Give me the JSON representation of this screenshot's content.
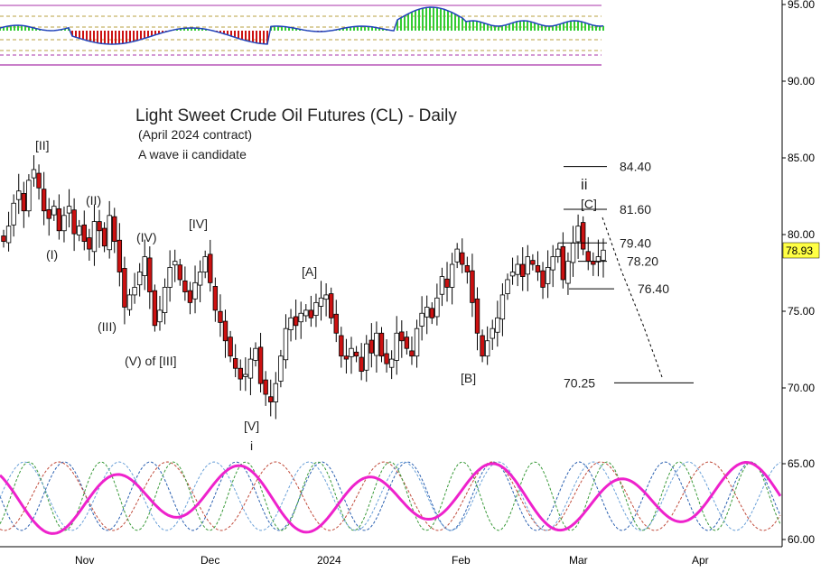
{
  "chart_data": {
    "type": "candlestick",
    "title": "Light Sweet Crude Oil Futures (CL) - Daily",
    "subtitle": "(April 2024 contract)",
    "annotation": "A wave ii candidate",
    "y_ticks": [
      "95.00",
      "90.00",
      "85.00",
      "80.00",
      "75.00",
      "70.00",
      "65.00",
      "60.00"
    ],
    "ylim": [
      59.5,
      95.5
    ],
    "x_ticks": [
      "Nov",
      "Dec",
      "2024",
      "Feb",
      "Mar",
      "Apr"
    ],
    "last_price": "78.93",
    "price_closes": [
      79.5,
      80.5,
      82.0,
      82.8,
      81.5,
      83.5,
      84.2,
      83.0,
      81.5,
      81.0,
      81.8,
      80.2,
      81.2,
      81.8,
      80.0,
      80.5,
      79.5,
      79.0,
      80.8,
      80.2,
      79.2,
      81.2,
      79.5,
      77.5,
      75.2,
      76.0,
      76.5,
      77.5,
      78.5,
      76.2,
      74.0,
      75.0,
      76.5,
      77.8,
      78.2,
      77.0,
      76.2,
      75.5,
      76.8,
      77.5,
      78.5,
      76.8,
      75.0,
      74.2,
      73.0,
      72.0,
      71.2,
      70.5,
      70.8,
      71.8,
      72.5,
      70.2,
      69.5,
      69.0,
      70.2,
      72.0,
      73.8,
      74.5,
      74.0,
      74.8,
      75.0,
      74.5,
      75.5,
      75.8,
      76.0,
      74.5,
      73.5,
      72.0,
      71.8,
      72.5,
      72.0,
      71.0,
      72.8,
      72.2,
      73.5,
      72.0,
      71.5,
      71.8,
      73.5,
      73.0,
      72.5,
      72.0,
      73.8,
      74.8,
      75.2,
      74.5,
      75.8,
      77.2,
      76.5,
      78.0,
      79.0,
      78.0,
      77.5,
      75.5,
      73.5,
      72.0,
      73.0,
      73.8,
      74.5,
      76.0,
      77.0,
      77.5,
      78.0,
      77.2,
      78.5,
      78.0,
      77.5,
      76.5,
      77.8,
      78.5,
      79.0,
      77.0,
      78.2,
      79.4,
      80.5,
      79.0,
      78.2,
      78.0,
      78.5,
      78.93
    ],
    "waves": [
      "[II]",
      "(I)",
      "(II)",
      "(III)",
      "(IV)",
      "[IV]",
      "(V) of [III]",
      "[V]",
      "i",
      "[A]",
      "[B]",
      "ii",
      "[C]"
    ],
    "levels": [
      {
        "value": 84.4,
        "label": "84.40"
      },
      {
        "value": 81.6,
        "label": "81.60"
      },
      {
        "value": 79.4,
        "label": "79.40"
      },
      {
        "value": 78.2,
        "label": "78.20"
      },
      {
        "value": 76.4,
        "label": "76.40"
      },
      {
        "value": 70.25,
        "label": "70.25"
      }
    ],
    "indicator_panel": {
      "type": "histogram-oscillator",
      "grid_lines": 7
    },
    "cycle_panel": {
      "type": "cycle-lines",
      "series_count": 4
    }
  },
  "colors": {
    "up": "#2ca02c",
    "down": "#cc1111",
    "oscillator_line": "#2244bb",
    "panel_line": "#aa33aa",
    "cycle_main": "#ee22cc",
    "price_label_bg": "#ffff44"
  }
}
